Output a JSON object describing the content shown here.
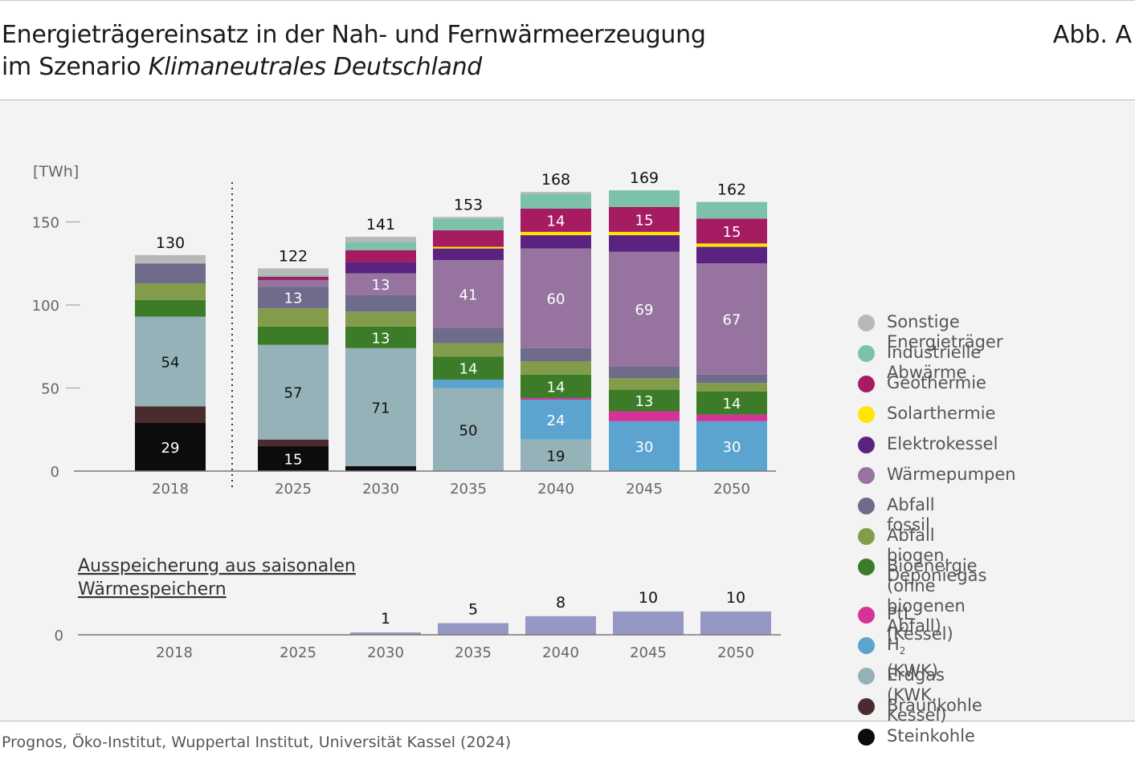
{
  "header": {
    "title_line1": "Energieträgereinsatz in der Nah- und Fernwärmeerzeugung",
    "title_line2_prefix": "im Szenario ",
    "title_line2_italic": "Klimaneutrales Deutschland",
    "figure_label": "Abb. A"
  },
  "source": "Prognos, Öko-Institut, Wuppertal Institut, Universität Kassel (2024)",
  "colors": {
    "sonstige": "#b8b8b8",
    "industrielle": "#7cc2a8",
    "geothermie": "#a51c62",
    "solarthermie": "#ffe500",
    "elektrokessel": "#5b2282",
    "waermepumpen": "#96749f",
    "abfall_fossil": "#6f6b8b",
    "abfall_biogen": "#839c4b",
    "bioenergie": "#3c7c28",
    "ptl": "#d6339a",
    "h2": "#5ba4cf",
    "erdgas": "#95b2b8",
    "braunkohle": "#4a2c2e",
    "steinkohle": "#0c0c0c",
    "storage": "#9597c4"
  },
  "legend": [
    {
      "key": "sonstige",
      "label": "Sonstige Energieträger"
    },
    {
      "key": "industrielle",
      "label": "Industrielle Abwärme"
    },
    {
      "key": "geothermie",
      "label": "Geothermie"
    },
    {
      "key": "solarthermie",
      "label": "Solarthermie"
    },
    {
      "key": "elektrokessel",
      "label": "Elektrokessel"
    },
    {
      "key": "waermepumpen",
      "label": "Wärmepumpen"
    },
    {
      "key": "abfall_fossil",
      "label": "Abfall fossil"
    },
    {
      "key": "abfall_biogen",
      "label": "Abfall biogen, Deponiegas"
    },
    {
      "key": "bioenergie",
      "label": "Bioenergie\n(ohne biogenen Abfall)"
    },
    {
      "key": "ptl",
      "label": "PtL (Kessel)"
    },
    {
      "key": "h2",
      "label": "H",
      "sub": "2",
      "suffix": " (KWK)"
    },
    {
      "key": "erdgas",
      "label": "Erdgas (KWK, Kessel)"
    },
    {
      "key": "braunkohle",
      "label": "Braunkohle"
    },
    {
      "key": "steinkohle",
      "label": "Steinkohle"
    }
  ],
  "chart_data": [
    {
      "type": "bar",
      "stacked": true,
      "ylabel": "[TWh]",
      "ylim": [
        0,
        150
      ],
      "yticks": [
        0,
        50,
        100,
        150
      ],
      "categories": [
        "2018",
        "2025",
        "2030",
        "2035",
        "2040",
        "2045",
        "2050"
      ],
      "totals": [
        130,
        122,
        141,
        153,
        168,
        169,
        162
      ],
      "divider_after_category": "2018",
      "series": [
        {
          "key": "steinkohle",
          "name": "Steinkohle",
          "values": [
            29,
            15,
            3,
            0,
            0,
            0,
            0
          ]
        },
        {
          "key": "braunkohle",
          "name": "Braunkohle",
          "values": [
            10,
            4,
            0,
            0,
            0,
            0,
            0
          ]
        },
        {
          "key": "erdgas",
          "name": "Erdgas (KWK, Kessel)",
          "values": [
            54,
            57,
            71,
            50,
            19,
            0,
            0
          ]
        },
        {
          "key": "h2",
          "name": "H2 (KWK)",
          "values": [
            0,
            0,
            0,
            5,
            24,
            30,
            30
          ]
        },
        {
          "key": "ptl",
          "name": "PtL (Kessel)",
          "values": [
            0,
            0,
            0,
            0,
            1,
            6,
            4
          ]
        },
        {
          "key": "bioenergie",
          "name": "Bioenergie (ohne biogenen Abfall)",
          "values": [
            10,
            11,
            13,
            14,
            14,
            13,
            14
          ]
        },
        {
          "key": "abfall_biogen",
          "name": "Abfall biogen, Deponiegas",
          "values": [
            10,
            11,
            9,
            8,
            8,
            7,
            5
          ]
        },
        {
          "key": "abfall_fossil",
          "name": "Abfall fossil",
          "values": [
            12,
            13,
            10,
            9,
            8,
            7,
            5
          ]
        },
        {
          "key": "waermepumpen",
          "name": "Wärmepumpen",
          "values": [
            0,
            4,
            13,
            41,
            60,
            69,
            67
          ]
        },
        {
          "key": "elektrokessel",
          "name": "Elektrokessel",
          "values": [
            0,
            0,
            7,
            7,
            8,
            10,
            10
          ]
        },
        {
          "key": "solarthermie",
          "name": "Solarthermie",
          "values": [
            0,
            0,
            0,
            1,
            2,
            2,
            2
          ]
        },
        {
          "key": "geothermie",
          "name": "Geothermie",
          "values": [
            0,
            2,
            7,
            10,
            14,
            15,
            15
          ]
        },
        {
          "key": "industrielle",
          "name": "Industrielle Abwärme",
          "values": [
            0,
            1,
            5,
            7,
            9,
            10,
            10
          ]
        },
        {
          "key": "sonstige",
          "name": "Sonstige Energieträger",
          "values": [
            5,
            4,
            3,
            1,
            1,
            0,
            0
          ]
        }
      ],
      "data_labels": [
        {
          "category": "2018",
          "series": "steinkohle",
          "text": "29"
        },
        {
          "category": "2018",
          "series": "erdgas",
          "text": "54"
        },
        {
          "category": "2025",
          "series": "steinkohle",
          "text": "15"
        },
        {
          "category": "2025",
          "series": "erdgas",
          "text": "57"
        },
        {
          "category": "2025",
          "series": "abfall_fossil",
          "text": "13"
        },
        {
          "category": "2030",
          "series": "erdgas",
          "text": "71"
        },
        {
          "category": "2030",
          "series": "bioenergie",
          "text": "13"
        },
        {
          "category": "2030",
          "series": "waermepumpen",
          "text": "13"
        },
        {
          "category": "2035",
          "series": "erdgas",
          "text": "50"
        },
        {
          "category": "2035",
          "series": "bioenergie",
          "text": "14"
        },
        {
          "category": "2035",
          "series": "waermepumpen",
          "text": "41"
        },
        {
          "category": "2040",
          "series": "erdgas",
          "text": "19"
        },
        {
          "category": "2040",
          "series": "h2",
          "text": "24"
        },
        {
          "category": "2040",
          "series": "bioenergie",
          "text": "14"
        },
        {
          "category": "2040",
          "series": "waermepumpen",
          "text": "60"
        },
        {
          "category": "2040",
          "series": "geothermie",
          "text": "14"
        },
        {
          "category": "2045",
          "series": "h2",
          "text": "30"
        },
        {
          "category": "2045",
          "series": "bioenergie",
          "text": "13"
        },
        {
          "category": "2045",
          "series": "waermepumpen",
          "text": "69"
        },
        {
          "category": "2045",
          "series": "geothermie",
          "text": "15"
        },
        {
          "category": "2050",
          "series": "h2",
          "text": "30"
        },
        {
          "category": "2050",
          "series": "bioenergie",
          "text": "14"
        },
        {
          "category": "2050",
          "series": "waermepumpen",
          "text": "67"
        },
        {
          "category": "2050",
          "series": "geothermie",
          "text": "15"
        }
      ]
    },
    {
      "type": "bar",
      "title_line1": "Ausspeicherung aus saisonalen",
      "title_line2": "Wärmespeichern",
      "ylim": [
        0,
        150
      ],
      "yticks": [
        0
      ],
      "categories": [
        "2018",
        "2025",
        "2030",
        "2035",
        "2040",
        "2045",
        "2050"
      ],
      "values": [
        0,
        0,
        1,
        5,
        8,
        10,
        10
      ],
      "labels": [
        "",
        "",
        "1",
        "5",
        "8",
        "10",
        "10"
      ]
    }
  ]
}
